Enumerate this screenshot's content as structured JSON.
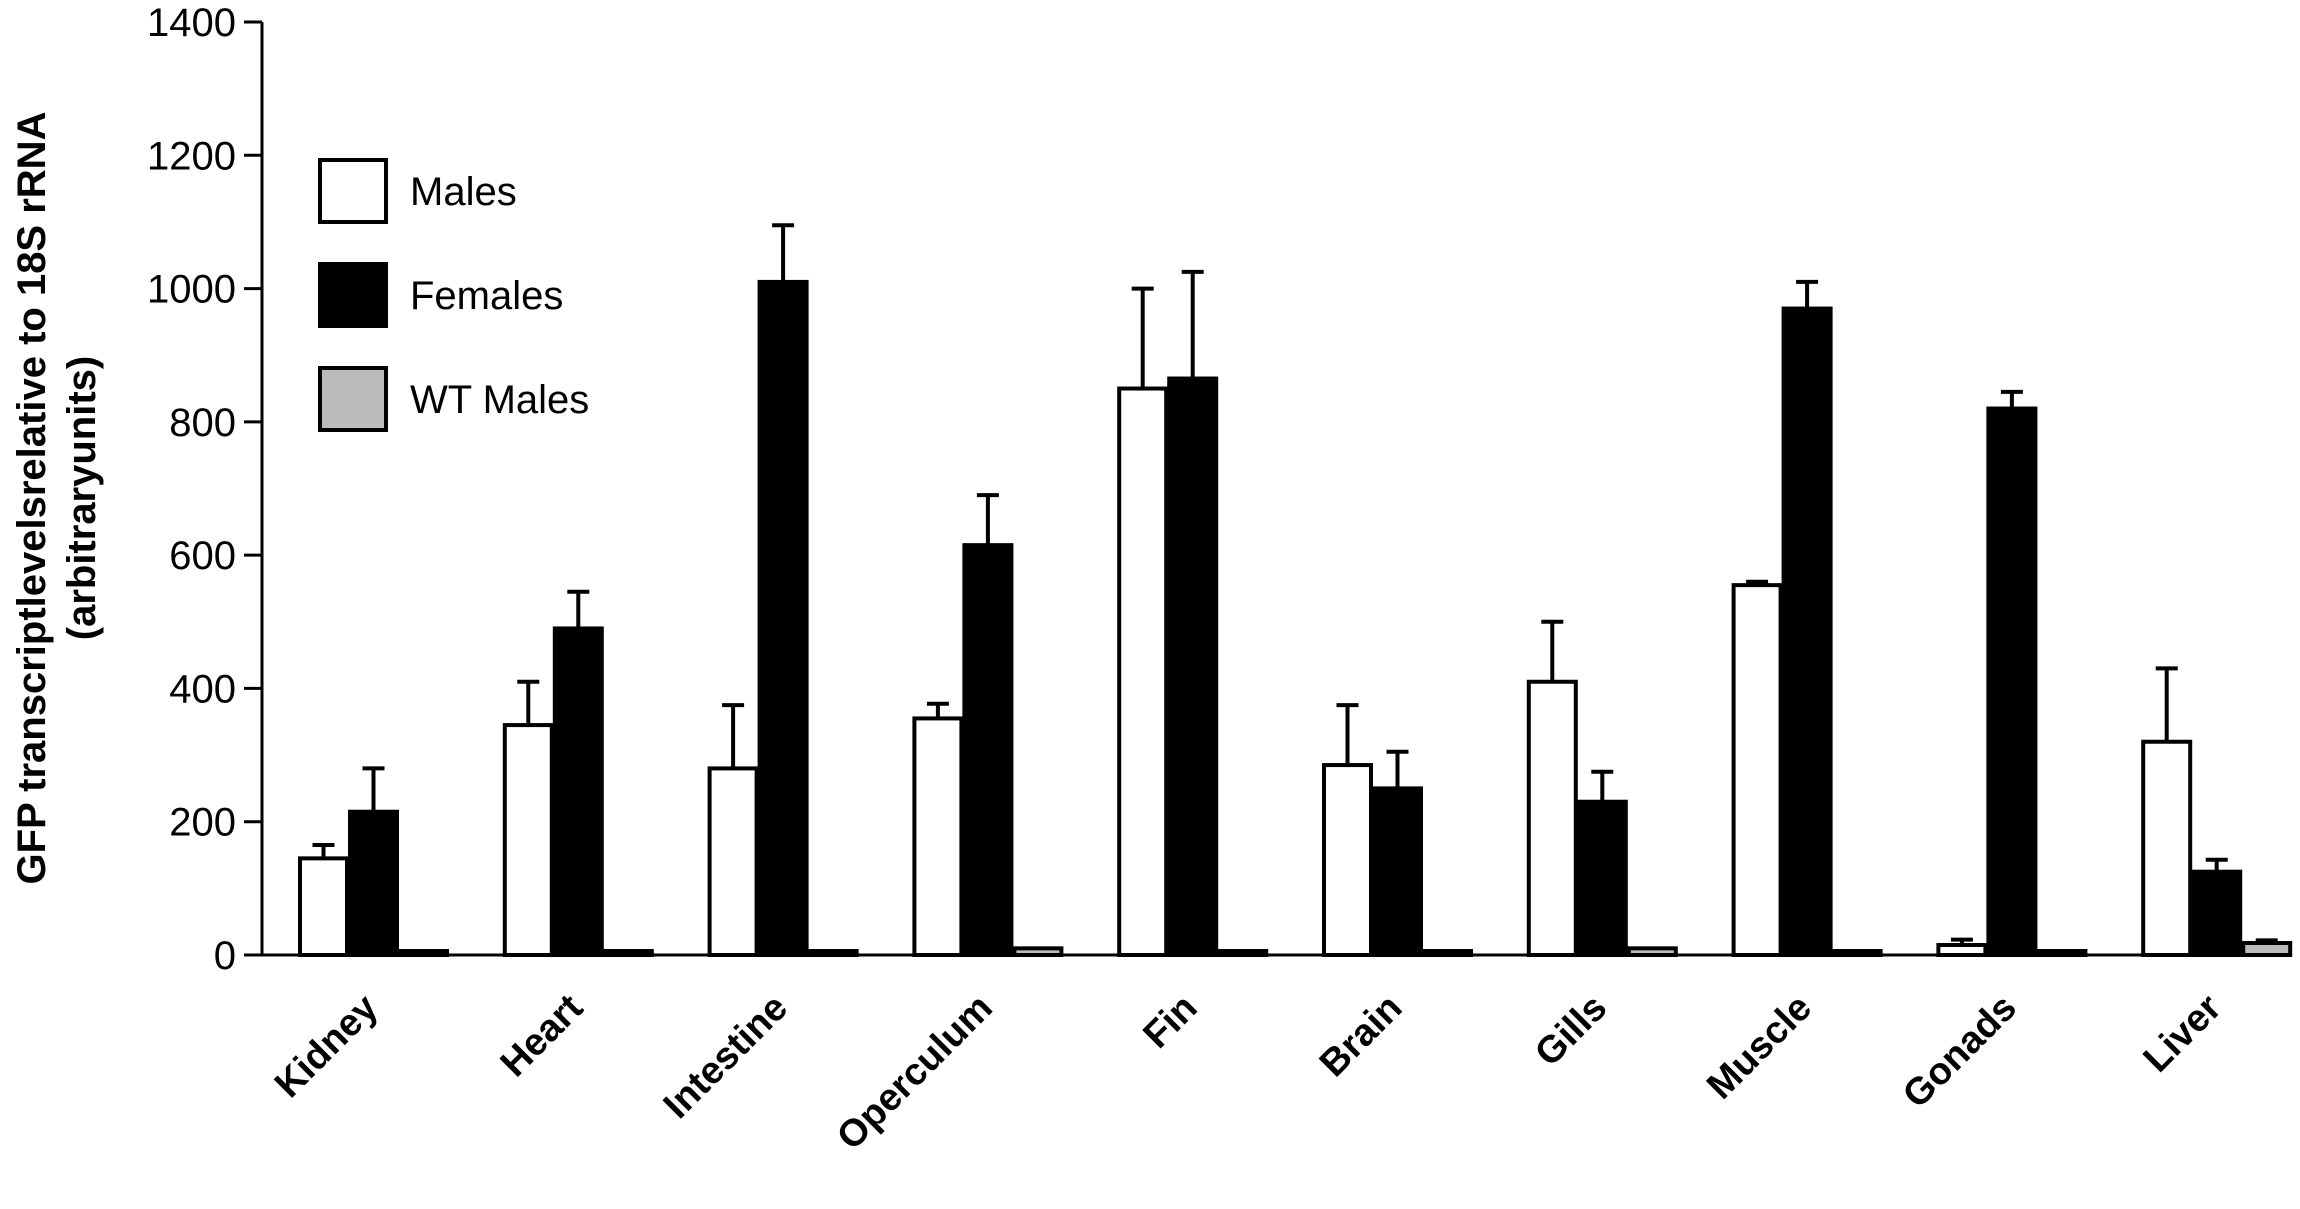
{
  "chart_data": {
    "type": "bar",
    "ylabel_line1": "GFP transcriptlevelsrelative to 18S rRNA",
    "ylabel_line2": "(arbitraryunits)",
    "ylim": [
      0,
      1400
    ],
    "yticks": [
      0,
      200,
      400,
      600,
      800,
      1000,
      1200,
      1400
    ],
    "legend_position": "top-left",
    "categories": [
      "Kidney",
      "Heart",
      "Intestine",
      "Operculum",
      "Fin",
      "Brain",
      "Gills",
      "Muscle",
      "Gonads",
      "Liver"
    ],
    "series": [
      {
        "name": "Males",
        "color": "#ffffff",
        "values": [
          145,
          345,
          280,
          355,
          850,
          285,
          410,
          555,
          15,
          320
        ],
        "errors": [
          20,
          65,
          95,
          22,
          150,
          90,
          90,
          5,
          8,
          110
        ]
      },
      {
        "name": "Females",
        "color": "#000000",
        "values": [
          215,
          490,
          1010,
          615,
          865,
          250,
          230,
          970,
          820,
          125
        ],
        "errors": [
          65,
          55,
          85,
          75,
          160,
          55,
          45,
          40,
          25,
          18
        ]
      },
      {
        "name": "WT Males",
        "color": "#bbbbbb",
        "values": [
          6,
          6,
          6,
          10,
          6,
          6,
          10,
          6,
          6,
          18
        ],
        "errors": [
          0,
          0,
          0,
          0,
          0,
          0,
          0,
          0,
          0,
          4
        ]
      }
    ]
  }
}
